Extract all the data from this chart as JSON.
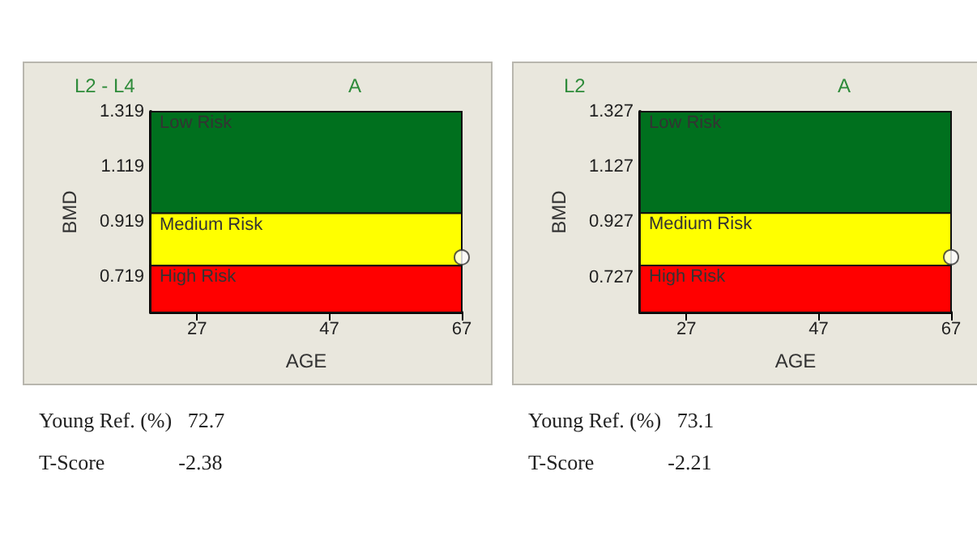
{
  "chart_data": [
    {
      "type": "scatter",
      "title": "L2 - L4",
      "subtitle": "A",
      "xlabel": "AGE",
      "ylabel": "BMD",
      "x": [
        67
      ],
      "values": [
        0.79
      ],
      "color": "#ffffff",
      "marker": "circle",
      "xlim": [
        20,
        67
      ],
      "xticks": [
        27,
        47,
        67
      ],
      "ylim": [
        0.59,
        1.319
      ],
      "yticks": [
        0.719,
        0.919,
        1.119,
        1.319
      ],
      "grid": false,
      "bands": [
        {
          "axis": "y",
          "from": 0.95,
          "to": 1.319,
          "label": "Low Risk",
          "color": "#00701e"
        },
        {
          "axis": "y",
          "from": 0.76,
          "to": 0.95,
          "label": "Medium Risk",
          "color": "#ffff00"
        },
        {
          "axis": "y",
          "from": 0.59,
          "to": 0.76,
          "label": "High Risk",
          "color": "#ff0000"
        }
      ],
      "annotations": [
        "Young Ref. (%)   72.7",
        "T-Score              -2.38"
      ]
    },
    {
      "type": "scatter",
      "title": "L2",
      "subtitle": "A",
      "xlabel": "AGE",
      "ylabel": "BMD",
      "x": [
        67
      ],
      "values": [
        0.8
      ],
      "color": "#ffffff",
      "marker": "circle",
      "xlim": [
        20,
        67
      ],
      "xticks": [
        27,
        47,
        67
      ],
      "ylim": [
        0.6,
        1.327
      ],
      "yticks": [
        0.727,
        0.927,
        1.127,
        1.327
      ],
      "grid": false,
      "bands": [
        {
          "axis": "y",
          "from": 0.96,
          "to": 1.327,
          "label": "Low Risk",
          "color": "#00701e"
        },
        {
          "axis": "y",
          "from": 0.77,
          "to": 0.96,
          "label": "Medium Risk",
          "color": "#ffff00"
        },
        {
          "axis": "y",
          "from": 0.6,
          "to": 0.77,
          "label": "High Risk",
          "color": "#ff0000"
        }
      ],
      "annotations": [
        "Young Ref. (%)   73.1",
        "T-Score              -2.21"
      ]
    }
  ]
}
